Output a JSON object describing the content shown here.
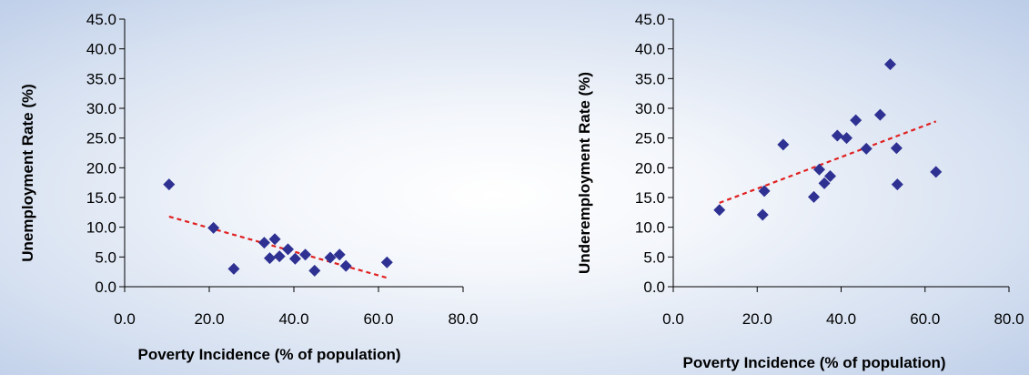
{
  "chart_data": [
    {
      "type": "scatter",
      "id": "unemployment",
      "xlabel": "Poverty Incidence (% of population)",
      "ylabel": "Unemployment Rate (%)",
      "xlim": [
        0,
        80
      ],
      "ylim": [
        0,
        45
      ],
      "xticks": [
        "0.0",
        "20.0",
        "40.0",
        "60.0",
        "80.0"
      ],
      "yticks": [
        "0.0",
        "5.0",
        "10.0",
        "15.0",
        "20.0",
        "25.0",
        "30.0",
        "35.0",
        "40.0",
        "45.0"
      ],
      "points": [
        {
          "x": 10.5,
          "y": 17.2
        },
        {
          "x": 21.0,
          "y": 9.9
        },
        {
          "x": 25.8,
          "y": 3.0
        },
        {
          "x": 33.0,
          "y": 7.4
        },
        {
          "x": 34.3,
          "y": 4.8
        },
        {
          "x": 35.5,
          "y": 8.0
        },
        {
          "x": 36.6,
          "y": 5.1
        },
        {
          "x": 38.6,
          "y": 6.3
        },
        {
          "x": 40.3,
          "y": 4.7
        },
        {
          "x": 42.7,
          "y": 5.4
        },
        {
          "x": 44.9,
          "y": 2.7
        },
        {
          "x": 48.6,
          "y": 4.9
        },
        {
          "x": 50.8,
          "y": 5.4
        },
        {
          "x": 52.3,
          "y": 3.5
        },
        {
          "x": 62.0,
          "y": 4.1
        }
      ],
      "trendline": {
        "x": [
          10.5,
          62.0
        ],
        "y": [
          11.8,
          1.5
        ],
        "color": "#e02020"
      },
      "marker_color": "#2e3192"
    },
    {
      "type": "scatter",
      "id": "underemployment",
      "xlabel": "Poverty Incidence (% of population)",
      "ylabel": "Underemployment Rate (%)",
      "xlim": [
        0,
        80
      ],
      "ylim": [
        0,
        45
      ],
      "xticks": [
        "0.0",
        "20.0",
        "40.0",
        "60.0",
        "80.0"
      ],
      "yticks": [
        "0.0",
        "5.0",
        "10.0",
        "15.0",
        "20.0",
        "25.0",
        "30.0",
        "35.0",
        "40.0",
        "45.0"
      ],
      "points": [
        {
          "x": 11.0,
          "y": 12.9
        },
        {
          "x": 21.3,
          "y": 12.1
        },
        {
          "x": 21.7,
          "y": 16.1
        },
        {
          "x": 26.2,
          "y": 23.9
        },
        {
          "x": 33.5,
          "y": 15.1
        },
        {
          "x": 34.8,
          "y": 19.7
        },
        {
          "x": 36.0,
          "y": 17.4
        },
        {
          "x": 37.4,
          "y": 18.6
        },
        {
          "x": 39.1,
          "y": 25.4
        },
        {
          "x": 41.3,
          "y": 25.0
        },
        {
          "x": 43.5,
          "y": 28.0
        },
        {
          "x": 46.0,
          "y": 23.2
        },
        {
          "x": 49.3,
          "y": 28.9
        },
        {
          "x": 51.7,
          "y": 37.4
        },
        {
          "x": 53.2,
          "y": 23.3
        },
        {
          "x": 53.4,
          "y": 17.2
        },
        {
          "x": 62.6,
          "y": 19.3
        }
      ],
      "trendline": {
        "x": [
          11.0,
          62.6
        ],
        "y": [
          14.1,
          27.8
        ],
        "color": "#e02020"
      },
      "marker_color": "#2e3192"
    }
  ]
}
